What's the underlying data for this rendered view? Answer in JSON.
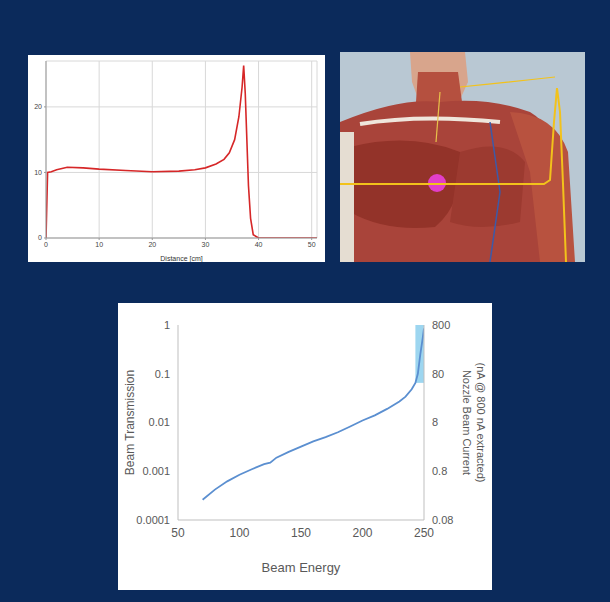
{
  "chart_data": [
    {
      "type": "line",
      "x": [
        0,
        0.3,
        1,
        2,
        4,
        7,
        10,
        15,
        20,
        25,
        28,
        30,
        32,
        33.5,
        34.5,
        35.5,
        36.3,
        36.9,
        37.2,
        37.5,
        37.8,
        38.1,
        38.5,
        39,
        40,
        45,
        51
      ],
      "values": [
        0,
        10,
        10.1,
        10.4,
        10.8,
        10.7,
        10.5,
        10.3,
        10.1,
        10.2,
        10.4,
        10.7,
        11.3,
        12,
        13,
        15,
        18.5,
        23,
        26.3,
        22,
        15,
        8,
        3,
        0.5,
        0,
        0,
        0
      ],
      "color": "#d62728",
      "xlabel": "Distance [cm]",
      "xlim": [
        0,
        51
      ],
      "xticks": [
        0,
        10,
        20,
        30,
        40,
        50
      ],
      "ylim": [
        0,
        27
      ],
      "yticks": [
        0,
        10,
        20
      ],
      "grid": true
    },
    {
      "type": "line",
      "x": [
        70,
        80,
        90,
        100,
        110,
        120,
        125,
        130,
        140,
        150,
        160,
        170,
        180,
        190,
        200,
        210,
        220,
        230,
        235,
        240,
        243,
        245,
        247,
        249,
        250
      ],
      "values": [
        0.00026,
        0.00042,
        0.00062,
        0.00085,
        0.0011,
        0.0014,
        0.0015,
        0.0019,
        0.0025,
        0.0032,
        0.0041,
        0.005,
        0.0063,
        0.0083,
        0.011,
        0.014,
        0.019,
        0.027,
        0.034,
        0.048,
        0.065,
        0.1,
        0.25,
        0.55,
        0.85
      ],
      "color": "#5b8fd0",
      "xlabel": "Beam Energy",
      "ylabel": "Beam Transmission",
      "y2label": "Nozzle Beam Current (nA @ 800 nA extracted)",
      "xlim": [
        50,
        250
      ],
      "xticks": [
        50,
        100,
        150,
        200,
        250
      ],
      "ylim": [
        0.0001,
        1
      ],
      "yticks": [
        0.0001,
        0.001,
        0.01,
        0.1,
        1
      ],
      "y2lim": [
        0.08,
        800
      ],
      "y2ticks": [
        0.08,
        0.8,
        8,
        80,
        800
      ],
      "log": "y",
      "grid": false,
      "shaded_region": {
        "xlim": [
          243,
          250
        ],
        "ylim": [
          0.065,
          1
        ],
        "color": "#9dd6f0"
      }
    }
  ]
}
